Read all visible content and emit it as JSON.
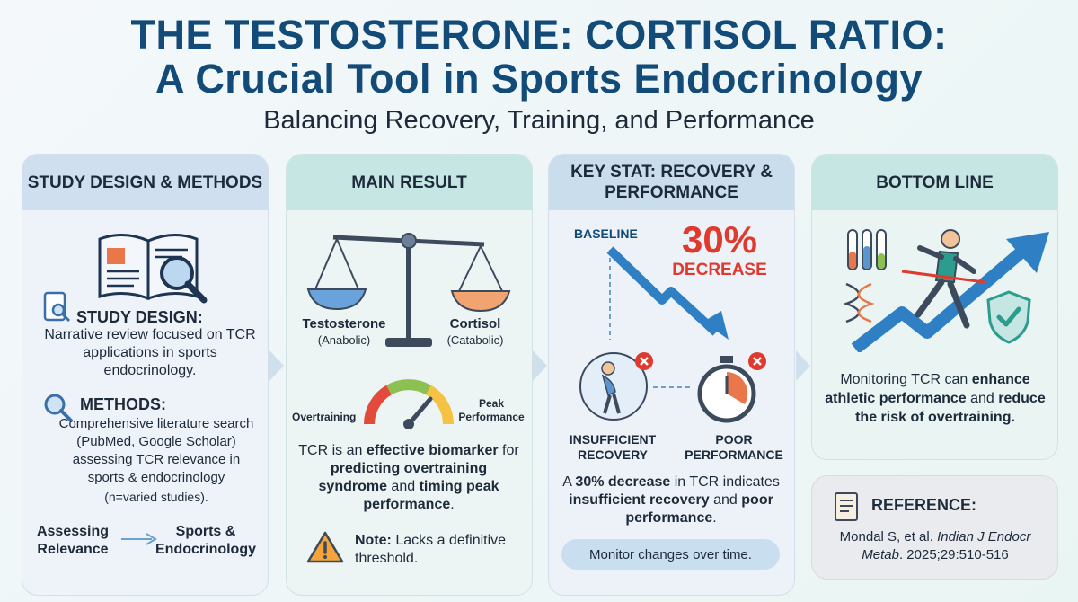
{
  "title_line1": "THE TESTOSTERONE: CORTISOL RATIO:",
  "title_line2": "A Crucial Tool in Sports Endocrinology",
  "subtitle": "Balancing Recovery, Training, and Performance",
  "colors": {
    "navy": "#124a78",
    "red": "#e03a2e",
    "blue_arrow": "#2f7fc4",
    "teal": "#2a9d8f"
  },
  "panel1": {
    "header": "STUDY DESIGN & METHODS",
    "design_label": "STUDY DESIGN:",
    "design_text": "Narrative review focused on TCR applications in sports endocrinology.",
    "methods_label": "METHODS:",
    "methods_text": "Comprehensive literature search (PubMed, Google Scholar) assessing TCR relevance in sports & endocrinology",
    "methods_note": "(n=varied studies).",
    "flow_left": "Assessing Relevance",
    "flow_right": "Sports & Endocrinology",
    "icons": [
      "open-book-icon",
      "magnifier-icon",
      "tablet-search-icon"
    ]
  },
  "panel2": {
    "header": "MAIN RESULT",
    "left_label": "Testosterone",
    "left_sub": "(Anabolic)",
    "right_label": "Cortisol",
    "right_sub": "(Catabolic)",
    "gauge_left": "Overtraining",
    "gauge_right": "Peak Performance",
    "result_pre": "TCR is an ",
    "result_b1": "effective biomarker",
    "result_mid1": " for ",
    "result_b2": "predicting overtraining syndrome",
    "result_mid2": " and ",
    "result_b3": "timing peak performance",
    "result_end": ".",
    "note_label": "Note:",
    "note_text": " Lacks a definitive threshold."
  },
  "panel3": {
    "header": "KEY STAT: RECOVERY & PERFORMANCE",
    "baseline": "BASELINE",
    "stat_value": "30%",
    "stat_label": "DECREASE",
    "left_label": "INSUFFICIENT RECOVERY",
    "right_label": "POOR PERFORMANCE",
    "body_pre": "A ",
    "body_b1": "30% decrease",
    "body_mid": " in TCR indicates ",
    "body_b2": "insufficient recovery",
    "body_mid2": " and ",
    "body_b3": "poor performance",
    "body_end": ".",
    "pill": "Monitor changes over time."
  },
  "panel4": {
    "header": "BOTTOM LINE",
    "text_pre": "Monitoring TCR can ",
    "text_b1": "enhance athletic performance",
    "text_mid": " and ",
    "text_b2": "reduce the risk of overtraining.",
    "icons": [
      "test-tubes-icon",
      "dna-icon",
      "runner-icon",
      "shield-check-icon",
      "trend-arrow-icon"
    ]
  },
  "reference": {
    "label": "REFERENCE:",
    "authors": "Mondal S, et al. ",
    "journal": "Indian J Endocr Metab",
    "details": ". 2025;29:510-516"
  }
}
